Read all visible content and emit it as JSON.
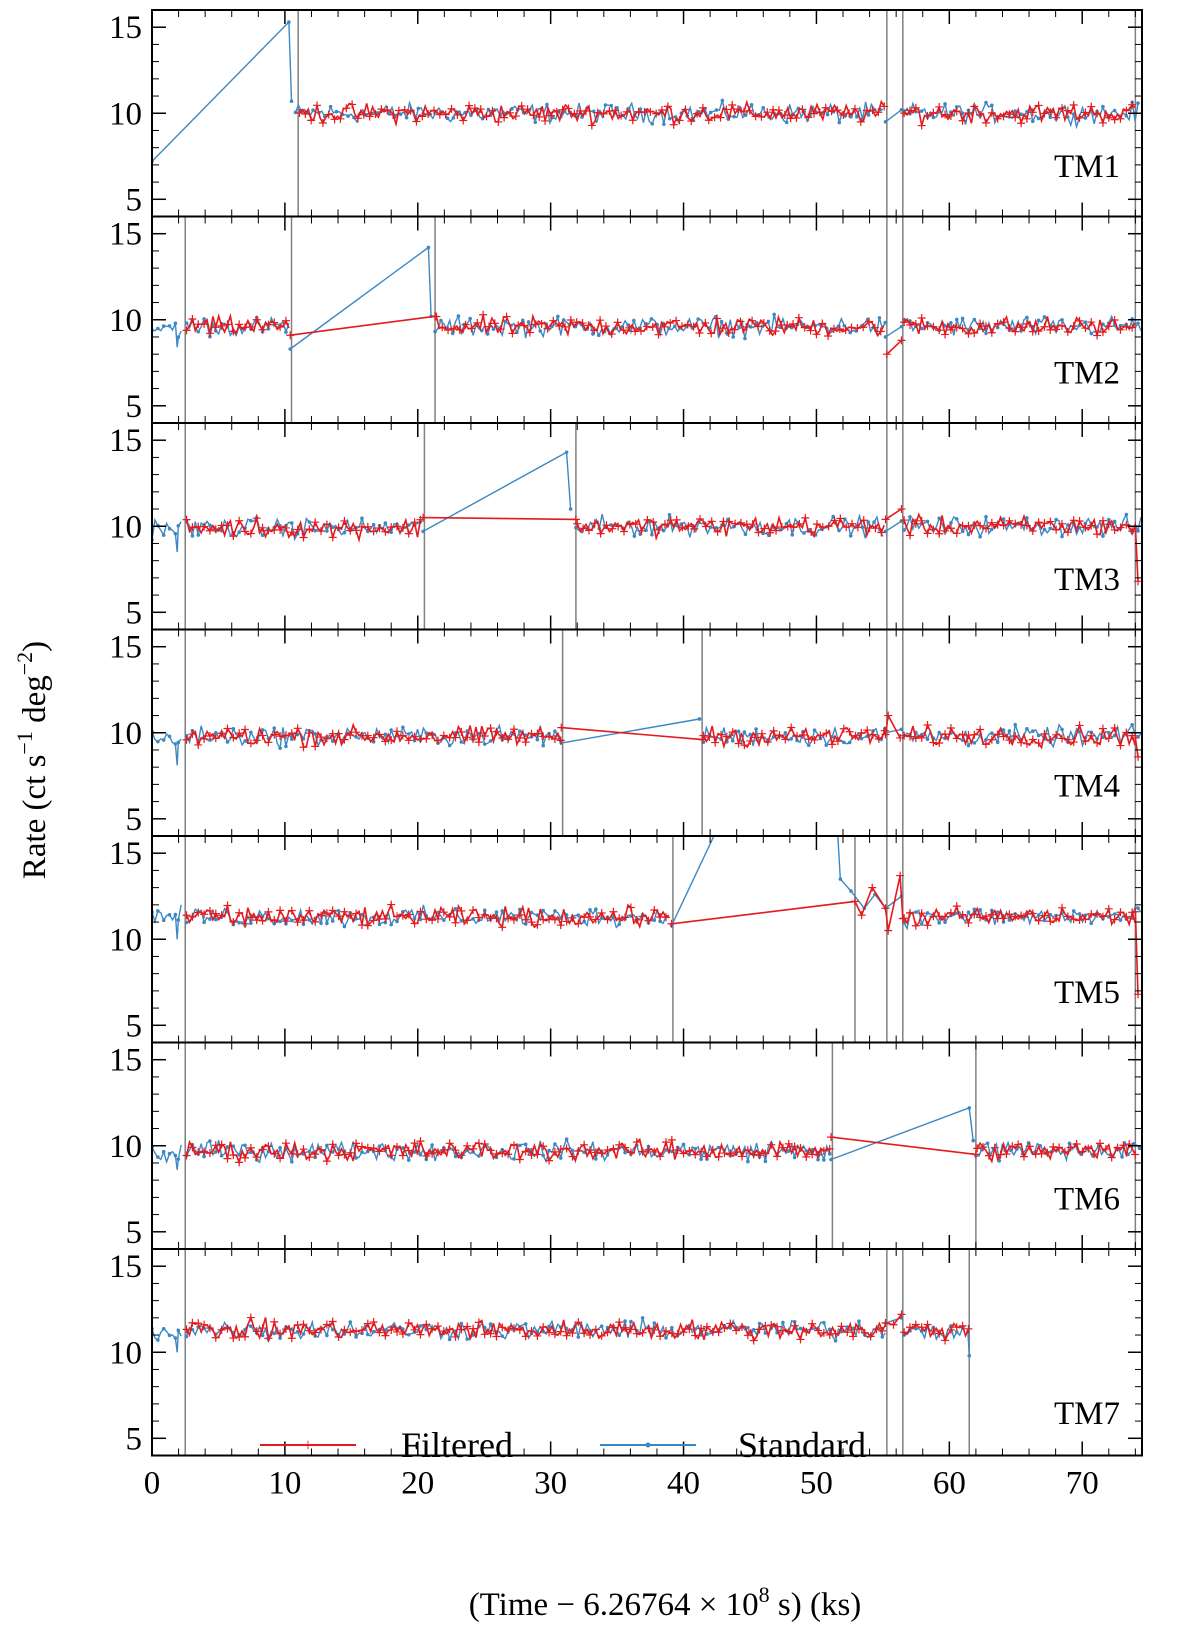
{
  "chart_data": {
    "type": "line",
    "xlabel_parts": {
      "open": "(Time − 6.26764 × 10",
      "exp": "8",
      "close": " s) (ks)"
    },
    "ylabel_parts": {
      "open": "Rate (ct s",
      "exp1": "−1",
      "mid": " deg",
      "exp2": "−2",
      "close": ")"
    },
    "xlim": [
      0,
      74.5
    ],
    "ylim": [
      4,
      16
    ],
    "x_ticks": [
      0,
      10,
      20,
      30,
      40,
      50,
      60,
      70
    ],
    "y_ticks": [
      5,
      10,
      15
    ],
    "grid": false,
    "legend": {
      "placement": "bottom-center of last panel",
      "entries": [
        {
          "name": "Filtered",
          "color": "#e41a1c",
          "marker": "+"
        },
        {
          "name": "Standard",
          "color": "#3b88c4",
          "marker": "."
        }
      ]
    },
    "colors": {
      "filtered": "#e41a1c",
      "standard": "#3b88c4",
      "gti_lines": "#808080"
    },
    "panels": [
      {
        "label": "TM1",
        "level": 10.0,
        "gti_lines": [
          11.0,
          55.3,
          56.5,
          74.0
        ],
        "standard_segments": [
          {
            "points": [
              [
                0,
                7.2
              ],
              [
                10.3,
                15.3
              ],
              [
                10.5,
                10.7
              ]
            ]
          },
          {
            "range": [
              10.8,
              55.2
            ],
            "level": 10.0
          },
          {
            "points": [
              [
                55.2,
                9.5
              ],
              [
                56.4,
                10.2
              ]
            ]
          },
          {
            "range": [
              56.6,
              74.3
            ],
            "level": 10.0
          }
        ],
        "filtered_segments": [
          {
            "range": [
              11.1,
              55.2
            ],
            "level": 10.0
          },
          {
            "range": [
              56.6,
              74.0
            ],
            "level": 10.0
          }
        ]
      },
      {
        "label": "TM2",
        "level": 9.6,
        "gti_lines": [
          2.5,
          10.5,
          21.3,
          55.3,
          56.5,
          74.0
        ],
        "standard_segments": [
          {
            "range": [
              0,
              2.4
            ],
            "level": 9.5,
            "extra": [
              [
                1.9,
                8.4
              ]
            ]
          },
          {
            "range": [
              2.6,
              10.4
            ],
            "level": 9.6
          },
          {
            "points": [
              [
                10.4,
                8.3
              ],
              [
                20.8,
                14.2
              ],
              [
                21.0,
                10.2
              ]
            ]
          },
          {
            "range": [
              21.3,
              55.2
            ],
            "level": 9.6
          },
          {
            "points": [
              [
                55.2,
                9.0
              ],
              [
                56.4,
                9.6
              ]
            ]
          },
          {
            "range": [
              56.6,
              74.5
            ],
            "level": 9.6
          }
        ],
        "filtered_segments": [
          {
            "range": [
              2.6,
              10.4
            ],
            "level": 9.6
          },
          {
            "points": [
              [
                10.4,
                9.1
              ],
              [
                21.3,
                10.2
              ]
            ]
          },
          {
            "range": [
              21.4,
              55.2
            ],
            "level": 9.6
          },
          {
            "points": [
              [
                55.3,
                8.0
              ],
              [
                56.4,
                8.8
              ]
            ]
          },
          {
            "range": [
              56.6,
              74.0
            ],
            "level": 9.6
          }
        ]
      },
      {
        "label": "TM3",
        "level": 10.0,
        "gti_lines": [
          2.5,
          20.5,
          31.9,
          55.3,
          56.5,
          74.0
        ],
        "standard_segments": [
          {
            "range": [
              0,
              2.4
            ],
            "level": 9.9,
            "extra": [
              [
                1.9,
                8.5
              ]
            ]
          },
          {
            "range": [
              2.6,
              20.4
            ],
            "level": 9.9
          },
          {
            "points": [
              [
                20.4,
                9.7
              ],
              [
                31.2,
                14.3
              ],
              [
                31.5,
                11.0
              ]
            ]
          },
          {
            "range": [
              31.9,
              55.2
            ],
            "level": 10.0
          },
          {
            "points": [
              [
                55.2,
                9.7
              ],
              [
                56.4,
                10.3
              ]
            ]
          },
          {
            "range": [
              56.6,
              74.5
            ],
            "level": 10.0
          }
        ],
        "filtered_segments": [
          {
            "range": [
              2.6,
              20.4
            ],
            "level": 9.9
          },
          {
            "points": [
              [
                20.4,
                10.5
              ],
              [
                31.9,
                10.4
              ]
            ]
          },
          {
            "range": [
              32.0,
              55.2
            ],
            "level": 10.0
          },
          {
            "points": [
              [
                55.2,
                10.4
              ],
              [
                56.4,
                11.0
              ]
            ]
          },
          {
            "range": [
              56.6,
              74.0
            ],
            "level": 10.0
          },
          {
            "points": [
              [
                74.0,
                10.0
              ],
              [
                74.2,
                6.8
              ]
            ]
          }
        ]
      },
      {
        "label": "TM4",
        "level": 9.8,
        "gti_lines": [
          2.5,
          30.9,
          41.4,
          55.3,
          56.5,
          74.0
        ],
        "standard_segments": [
          {
            "range": [
              0,
              2.4
            ],
            "level": 9.6,
            "extra": [
              [
                1.9,
                8.1
              ]
            ]
          },
          {
            "range": [
              2.6,
              30.8
            ],
            "level": 9.8
          },
          {
            "points": [
              [
                30.8,
                9.4
              ],
              [
                41.2,
                10.8
              ]
            ]
          },
          {
            "range": [
              41.5,
              55.2
            ],
            "level": 9.8
          },
          {
            "points": [
              [
                55.2,
                10.0
              ],
              [
                56.4,
                10.2
              ]
            ]
          },
          {
            "range": [
              56.6,
              74.5
            ],
            "level": 9.8
          }
        ],
        "filtered_segments": [
          {
            "range": [
              2.6,
              30.8
            ],
            "level": 9.8
          },
          {
            "points": [
              [
                30.8,
                10.3
              ],
              [
                41.4,
                9.6
              ]
            ]
          },
          {
            "range": [
              41.5,
              55.2
            ],
            "level": 9.8
          },
          {
            "points": [
              [
                55.2,
                9.9
              ],
              [
                55.4,
                11.0
              ],
              [
                56.3,
                9.7
              ]
            ]
          },
          {
            "range": [
              56.6,
              74.0
            ],
            "level": 9.8
          },
          {
            "points": [
              [
                74.0,
                9.7
              ],
              [
                74.2,
                8.6
              ]
            ]
          }
        ]
      },
      {
        "label": "TM5",
        "level": 11.3,
        "gti_lines": [
          2.5,
          39.2,
          52.9,
          55.3,
          56.5,
          74.0
        ],
        "standard_segments": [
          {
            "range": [
              0,
              2.4
            ],
            "level": 11.3,
            "extra": [
              [
                1.9,
                10.0
              ]
            ]
          },
          {
            "range": [
              2.6,
              39.1
            ],
            "level": 11.3
          },
          {
            "points": [
              [
                39.1,
                10.8
              ],
              [
                43.2,
                17.5
              ]
            ]
          },
          {
            "points": [
              [
                51.5,
                17.5
              ],
              [
                51.8,
                13.5
              ],
              [
                52.6,
                12.8
              ],
              [
                53.6,
                11.8
              ],
              [
                54.4,
                12.6
              ],
              [
                55.2,
                11.8
              ],
              [
                56.4,
                12.5
              ]
            ]
          },
          {
            "range": [
              56.6,
              74.5
            ],
            "level": 11.3
          }
        ],
        "filtered_segments": [
          {
            "range": [
              2.6,
              39.1
            ],
            "level": 11.3
          },
          {
            "points": [
              [
                39.1,
                10.9
              ],
              [
                52.9,
                12.2
              ],
              [
                53.4,
                11.4
              ],
              [
                54.2,
                13.0
              ],
              [
                55.2,
                11.8
              ],
              [
                55.4,
                10.5
              ],
              [
                56.3,
                13.7
              ],
              [
                56.5,
                11.2
              ]
            ]
          },
          {
            "range": [
              56.6,
              74.0
            ],
            "level": 11.3
          },
          {
            "points": [
              [
                74.0,
                11.6
              ],
              [
                74.2,
                6.8
              ]
            ]
          }
        ]
      },
      {
        "label": "TM6",
        "level": 9.7,
        "gti_lines": [
          2.5,
          51.2,
          62.0,
          74.0
        ],
        "standard_segments": [
          {
            "range": [
              0,
              2.4
            ],
            "level": 9.5,
            "extra": [
              [
                1.9,
                8.6
              ]
            ]
          },
          {
            "range": [
              2.6,
              51.1
            ],
            "level": 9.7
          },
          {
            "points": [
              [
                51.1,
                9.2
              ],
              [
                61.5,
                12.2
              ],
              [
                61.8,
                10.3
              ]
            ]
          },
          {
            "range": [
              62.0,
              74.5
            ],
            "level": 9.7
          }
        ],
        "filtered_segments": [
          {
            "range": [
              2.6,
              51.1
            ],
            "level": 9.7
          },
          {
            "points": [
              [
                51.1,
                10.5
              ],
              [
                62.0,
                9.5
              ]
            ]
          },
          {
            "range": [
              62.1,
              74.0
            ],
            "level": 9.7
          }
        ]
      },
      {
        "label": "TM7",
        "level": 11.3,
        "gti_lines": [
          2.5,
          55.3,
          56.5,
          61.5
        ],
        "standard_segments": [
          {
            "range": [
              0,
              2.4
            ],
            "level": 11.2,
            "extra": [
              [
                1.9,
                10.0
              ]
            ]
          },
          {
            "range": [
              2.6,
              55.2
            ],
            "level": 11.3
          },
          {
            "points": [
              [
                55.2,
                11.7
              ],
              [
                56.4,
                12.0
              ]
            ]
          },
          {
            "range": [
              56.6,
              61.4
            ],
            "level": 11.3
          },
          {
            "points": [
              [
                61.4,
                11.2
              ],
              [
                61.5,
                9.8
              ]
            ]
          }
        ],
        "filtered_segments": [
          {
            "range": [
              2.6,
              55.2
            ],
            "level": 11.3
          },
          {
            "points": [
              [
                55.2,
                11.7
              ],
              [
                55.8,
                11.6
              ],
              [
                56.4,
                12.2
              ]
            ]
          },
          {
            "range": [
              56.6,
              61.5
            ],
            "level": 11.3
          }
        ]
      }
    ]
  }
}
